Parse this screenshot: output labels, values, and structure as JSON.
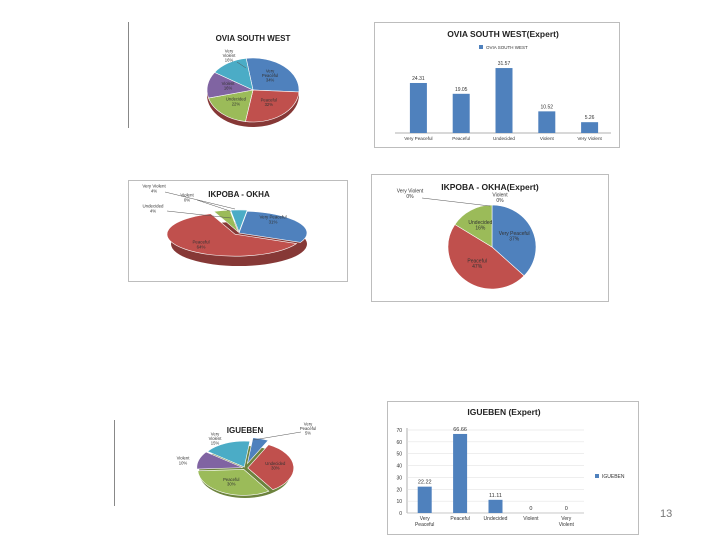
{
  "page_number": "13",
  "chart_data": [
    {
      "id": "ovia-pie",
      "type": "pie",
      "title": "OVIA SOUTH WEST",
      "labels": [
        "Very Peaceful",
        "Peaceful",
        "Undecided",
        "Violent",
        "Very Violent"
      ],
      "display": [
        "34%",
        "32%",
        "22%",
        "16%",
        "16%"
      ],
      "values": [
        34,
        32,
        22,
        16,
        16
      ],
      "colors": [
        "#4f81bd",
        "#c0504d",
        "#9bbb59",
        "#8064a2",
        "#4bacc6"
      ]
    },
    {
      "id": "ovia-bar",
      "type": "bar",
      "title": "OVIA SOUTH WEST(Expert)",
      "legend": "OVIA SOUTH WEST",
      "categories": [
        "Very Peaceful",
        "Peaceful",
        "Undecided",
        "Violent",
        "Very Violent"
      ],
      "values": [
        24.31,
        19.05,
        31.57,
        10.52,
        5.26
      ],
      "value_labels": [
        "24.31",
        "19.05",
        "31.57",
        "10.52",
        "5.26"
      ],
      "ylim": [
        0,
        35
      ],
      "color": "#4f81bd"
    },
    {
      "id": "ikpoba-pie",
      "type": "pie",
      "title": "IKPOBA - OKHA",
      "labels": [
        "Very Peaceful",
        "Peaceful",
        "Undecided",
        "Violent",
        "Very Violent"
      ],
      "display": [
        "31%",
        "64%",
        "4%",
        "0%",
        "4%"
      ],
      "values": [
        31,
        64,
        4,
        0,
        4
      ],
      "colors": [
        "#4f81bd",
        "#c0504d",
        "#9bbb59",
        "#8064a2",
        "#4bacc6"
      ]
    },
    {
      "id": "ikpoba-expert-pie",
      "type": "pie",
      "title": "IKPOBA - OKHA(Expert)",
      "labels": [
        "Very Peaceful",
        "Peaceful",
        "Undecided",
        "Violent",
        "Very Violent"
      ],
      "display": [
        "37%",
        "47%",
        "16%",
        "0%",
        "0%"
      ],
      "values": [
        37,
        47,
        16,
        0,
        0
      ],
      "colors": [
        "#4f81bd",
        "#c0504d",
        "#9bbb59",
        "#8064a2",
        "#4bacc6"
      ]
    },
    {
      "id": "igueben-pie",
      "type": "pie",
      "title": "IGUEBEN",
      "labels": [
        "Very Peaceful",
        "Undecided",
        "Peaceful",
        "Violent",
        "Very Violent"
      ],
      "display": [
        "5%",
        "30%",
        "30%",
        "10%",
        "15%"
      ],
      "values": [
        5,
        30,
        30,
        10,
        15
      ],
      "colors": [
        "#4f81bd",
        "#c0504d",
        "#9bbb59",
        "#8064a2",
        "#4bacc6"
      ]
    },
    {
      "id": "igueben-bar",
      "type": "bar",
      "title": "IGUEBEN (Expert)",
      "legend": "IGUEBEN",
      "categories": [
        "Very Peaceful",
        "Peaceful",
        "Undecided",
        "Violent",
        "Very Violent"
      ],
      "values": [
        22.22,
        66.66,
        11.11,
        0,
        0
      ],
      "value_labels": [
        "22.22",
        "66.66",
        "11.11",
        "0",
        "0"
      ],
      "ylim": [
        0,
        70
      ],
      "yticks": [
        "0",
        "10",
        "20",
        "30",
        "40",
        "50",
        "60",
        "70"
      ],
      "color": "#4f81bd"
    }
  ]
}
